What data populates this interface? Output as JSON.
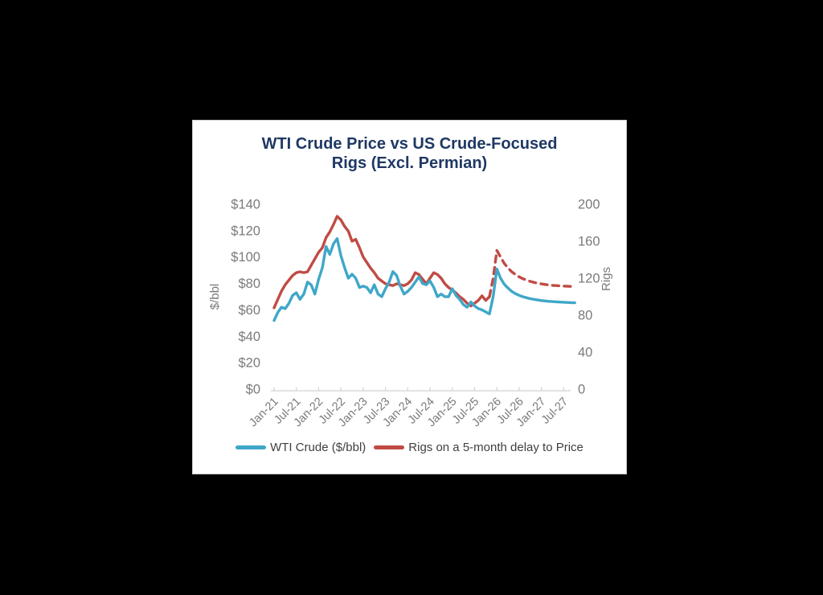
{
  "header": {
    "title_line1": "WTI Crude Price vs US Crude-Focused",
    "title_line2": "Rigs (Excl. Permian)"
  },
  "chart_data": {
    "type": "line",
    "title": "WTI Crude Price vs US Crude-Focused Rigs (Excl. Permian)",
    "x_unit": "monthly points starting Jan-21",
    "x_tick_labels": [
      "Jan-21",
      "Jul-21",
      "Jan-22",
      "Jul-22",
      "Jan-23",
      "Jul-23",
      "Jan-24",
      "Jul-24",
      "Jan-25",
      "Jul-25",
      "Jan-26",
      "Jul-26",
      "Jan-27",
      "Jul-27"
    ],
    "x_tick_month_indices": [
      0,
      6,
      12,
      18,
      24,
      30,
      36,
      42,
      48,
      54,
      60,
      66,
      72,
      78
    ],
    "left_axis": {
      "label": "$/bbl",
      "range": [
        0,
        140
      ],
      "tick_step": 20,
      "tick_prefix": "$"
    },
    "right_axis": {
      "label": "Rigs",
      "range": [
        0,
        200
      ],
      "tick_step": 40,
      "tick_prefix": ""
    },
    "grid": false,
    "legend_position": "bottom",
    "series": [
      {
        "name": "WTI Crude ($/bbl)",
        "axis": "left",
        "color": "#3FA7C8",
        "line_style": "solid",
        "values": [
          52,
          58,
          62,
          61,
          65,
          71,
          73,
          68,
          72,
          81,
          79,
          72,
          83,
          92,
          108,
          102,
          110,
          114,
          101,
          92,
          84,
          87,
          84,
          77,
          78,
          77,
          73,
          79,
          72,
          70,
          76,
          81,
          89,
          86,
          78,
          72,
          74,
          77,
          81,
          85,
          80,
          79,
          82,
          77,
          70,
          72,
          70,
          70,
          76,
          71,
          68,
          64,
          62,
          66,
          63,
          61,
          60,
          58.5,
          57,
          70,
          91,
          84,
          79.5,
          76.5,
          74,
          72.3,
          71,
          70,
          69.2,
          68.5,
          68,
          67.5,
          67.1,
          66.8,
          66.5,
          66.3,
          66.1,
          65.9,
          65.8,
          65.6,
          65.5,
          65.4
        ]
      },
      {
        "name": "Rigs on a 5-month delay to Price",
        "axis": "right",
        "color": "#C04B44",
        "line_style": "solid, dashed forecast after Nov-25",
        "dash_start_index": 58,
        "values": [
          88,
          97,
          106,
          113,
          118,
          123,
          126,
          127,
          126,
          127,
          134,
          141,
          148,
          153,
          164,
          170,
          178,
          187,
          183,
          176,
          171,
          160,
          162,
          153,
          143,
          137,
          131,
          126,
          120,
          117,
          114,
          113,
          112,
          114,
          113,
          112,
          114,
          118,
          126,
          124,
          119,
          114,
          120,
          126,
          124,
          120,
          114,
          110,
          107,
          104,
          100,
          97,
          93,
          90,
          93,
          96,
          101,
          96,
          100,
          120,
          150,
          143,
          136,
          131,
          127,
          124,
          121.5,
          119.5,
          118,
          116.5,
          115.5,
          114.5,
          113.8,
          113.2,
          112.7,
          112.3,
          112,
          111.7,
          111.5,
          111.3,
          111.1,
          111
        ]
      }
    ],
    "legend": [
      {
        "label": "WTI Crude ($/bbl)"
      },
      {
        "label": "Rigs on a 5-month delay to Price"
      }
    ]
  },
  "colors": {
    "title": "#1F3864",
    "tick_labels": "#7A7A7A",
    "axis_titles": "#7A7A7A",
    "legend_text": "#404040",
    "axis_line": "#D2D2D2",
    "background": "#000000",
    "card_background": "#FFFFFF",
    "wti_line": "#3FA7C8",
    "rigs_line": "#C04B44"
  }
}
